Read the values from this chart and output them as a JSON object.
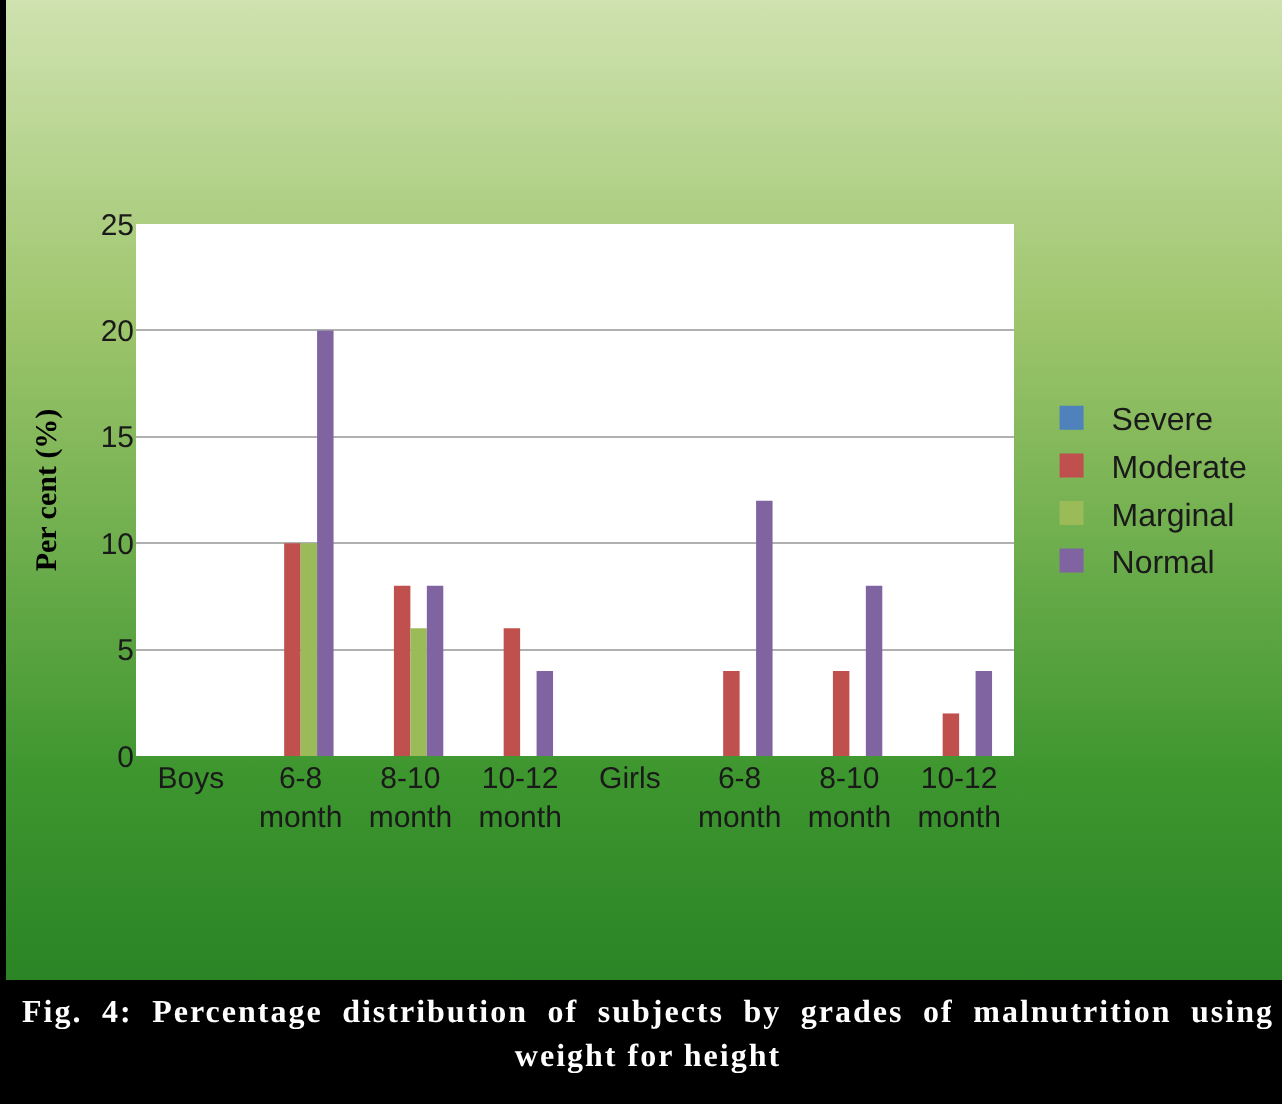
{
  "chart_data": {
    "type": "bar",
    "title": "Fig. 4: Percentage distribution of subjects by grades of malnutrition using weight for height",
    "ylabel": "Per cent (%)",
    "categories": [
      "Boys",
      "6-8 month",
      "8-10 month",
      "10-12 month",
      "Girls",
      "6-8 month",
      "8-10 month",
      "10-12 month"
    ],
    "series": [
      {
        "name": "Severe",
        "color": "#4f81bd",
        "values": [
          null,
          0,
          0,
          0,
          null,
          0,
          0,
          0
        ]
      },
      {
        "name": "Moderate",
        "color": "#c0504d",
        "values": [
          null,
          10,
          8,
          6,
          null,
          4,
          4,
          2
        ]
      },
      {
        "name": "Marginal",
        "color": "#9bbb59",
        "values": [
          null,
          10,
          6,
          0,
          null,
          0,
          0,
          0
        ]
      },
      {
        "name": "Normal",
        "color": "#8064a2",
        "values": [
          null,
          20,
          8,
          4,
          null,
          12,
          8,
          4
        ]
      }
    ],
    "ylim": [
      0,
      25
    ],
    "yticks": [
      0,
      5,
      10,
      15,
      20,
      25
    ],
    "grid": "y",
    "legend": "right"
  }
}
